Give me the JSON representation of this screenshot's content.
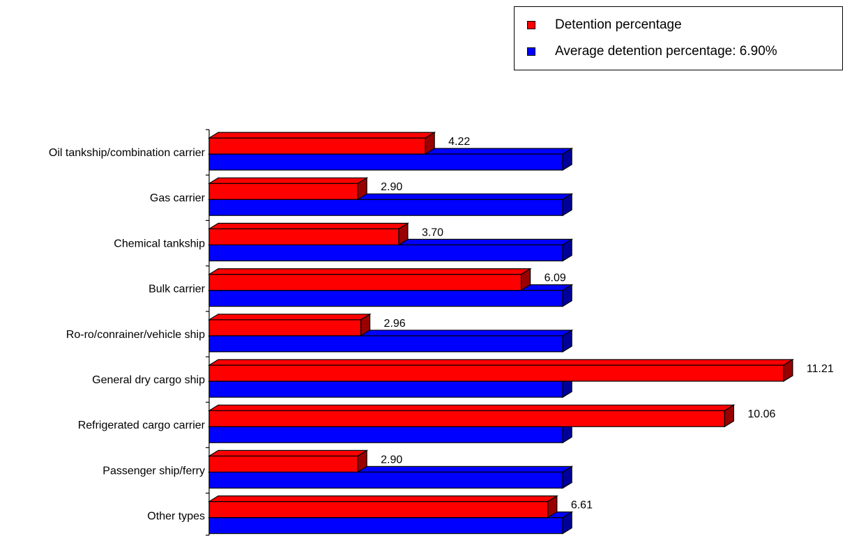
{
  "chart_data": {
    "type": "bar",
    "orientation": "horizontal",
    "style": "3d",
    "categories": [
      "Oil tankship/combination carrier",
      "Gas carrier",
      "Chemical tankship",
      "Bulk carrier",
      "Ro-ro/conrainer/vehicle ship",
      "General dry cargo ship",
      "Refrigerated cargo carrier",
      "Passenger ship/ferry",
      "Other types"
    ],
    "series": [
      {
        "name": "Detention percentage",
        "color": "#ff0000",
        "values": [
          4.22,
          2.9,
          3.7,
          6.09,
          2.96,
          11.21,
          10.06,
          2.9,
          6.61
        ],
        "labels": [
          "4.22",
          "2.90",
          "3.70",
          "6.09",
          "2.96",
          "11.21",
          "10.06",
          "2.90",
          "6.61"
        ]
      },
      {
        "name": "Average detention percentage: 6.90%",
        "color": "#0000ff",
        "values": [
          6.9,
          6.9,
          6.9,
          6.9,
          6.9,
          6.9,
          6.9,
          6.9,
          6.9
        ]
      }
    ],
    "xlim": [
      0,
      12
    ],
    "grid": false,
    "legend_position": "top-right",
    "title": "",
    "xlabel": "",
    "ylabel": ""
  }
}
